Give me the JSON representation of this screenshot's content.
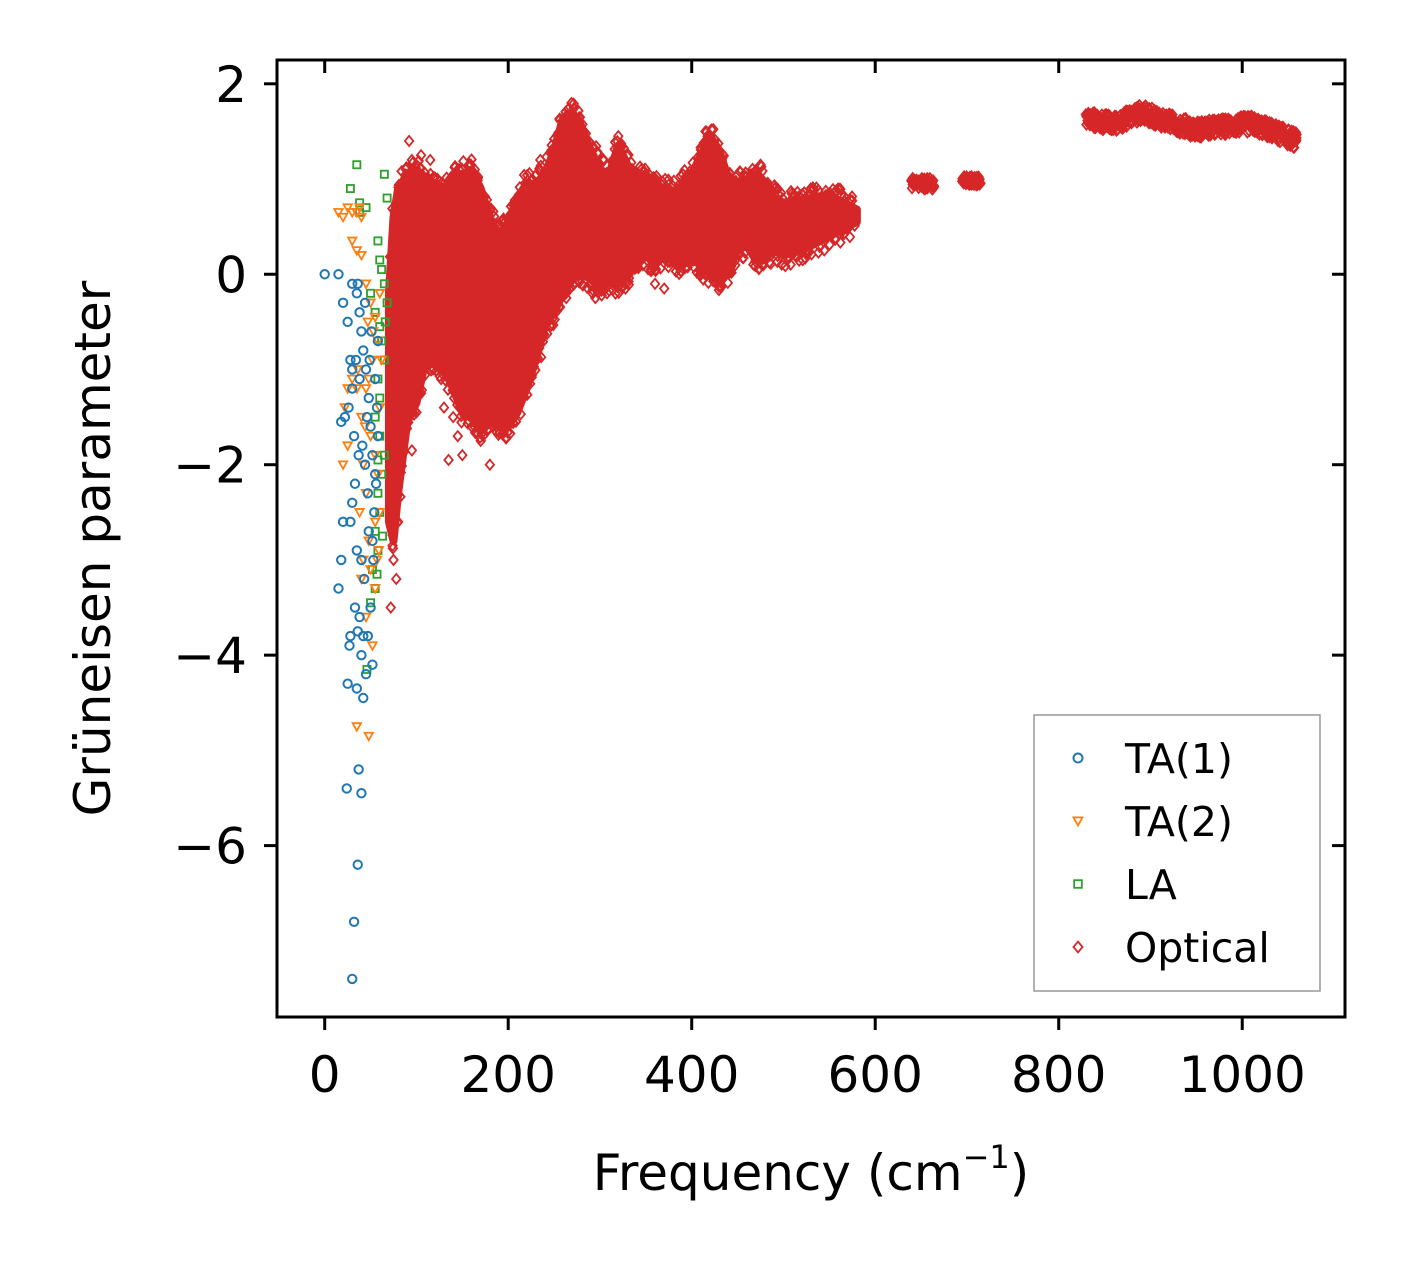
{
  "chart_data": {
    "type": "scatter",
    "title": "",
    "xlabel": "Frequency (cm",
    "xlabel_sup": "−1",
    "xlabel_close": ")",
    "ylabel": "Grüneisen parameter",
    "xlim": [
      -52,
      1112
    ],
    "ylim": [
      -7.8,
      2.25
    ],
    "xticks": [
      0,
      200,
      400,
      600,
      800,
      1000
    ],
    "xtick_labels": [
      "0",
      "200",
      "400",
      "600",
      "800",
      "1000"
    ],
    "yticks": [
      2,
      0,
      -2,
      -4,
      -6
    ],
    "ytick_labels": [
      "2",
      "0",
      "−2",
      "−4",
      "−6"
    ],
    "legend_position": "lower-right",
    "series": [
      {
        "name": "TA(1)",
        "marker": "circle",
        "color": "#1f77b4",
        "points": [
          [
            0,
            0
          ],
          [
            15,
            0
          ],
          [
            20,
            -0.3
          ],
          [
            25,
            -0.5
          ],
          [
            28,
            -0.9
          ],
          [
            30,
            -1.2
          ],
          [
            22,
            -1.5
          ],
          [
            18,
            -1.55
          ],
          [
            26,
            -1.4
          ],
          [
            32,
            -1.7
          ],
          [
            35,
            -0.2
          ],
          [
            38,
            -0.4
          ],
          [
            40,
            -0.6
          ],
          [
            42,
            -0.8
          ],
          [
            45,
            -1.0
          ],
          [
            48,
            -1.3
          ],
          [
            50,
            -1.6
          ],
          [
            52,
            -1.9
          ],
          [
            55,
            -2.1
          ],
          [
            47,
            -2.3
          ],
          [
            44,
            -2.0
          ],
          [
            41,
            -1.8
          ],
          [
            37,
            -1.9
          ],
          [
            33,
            -2.2
          ],
          [
            30,
            -2.4
          ],
          [
            28,
            -2.6
          ],
          [
            20,
            -2.6
          ],
          [
            18,
            -3.0
          ],
          [
            15,
            -3.3
          ],
          [
            35,
            -2.9
          ],
          [
            40,
            -3.0
          ],
          [
            43,
            -3.2
          ],
          [
            38,
            -3.6
          ],
          [
            33,
            -3.5
          ],
          [
            28,
            -3.8
          ],
          [
            27,
            -3.9
          ],
          [
            36,
            -3.75
          ],
          [
            42,
            -3.8
          ],
          [
            47,
            -3.8
          ],
          [
            52,
            -4.1
          ],
          [
            45,
            -4.2
          ],
          [
            40,
            -4.0
          ],
          [
            25,
            -4.3
          ],
          [
            35,
            -4.35
          ],
          [
            42,
            -4.45
          ],
          [
            37,
            -5.2
          ],
          [
            24,
            -5.4
          ],
          [
            40,
            -5.45
          ],
          [
            36,
            -6.2
          ],
          [
            32,
            -6.8
          ],
          [
            30,
            -7.4
          ],
          [
            55,
            -1.1
          ],
          [
            58,
            -0.7
          ],
          [
            57,
            -1.4
          ],
          [
            54,
            -2.5
          ],
          [
            56,
            -2.2
          ],
          [
            50,
            -3.5
          ],
          [
            53,
            -3.0
          ],
          [
            46,
            -1.5
          ],
          [
            49,
            -0.9
          ],
          [
            38,
            -1.1
          ],
          [
            34,
            -0.9
          ],
          [
            30,
            -0.1
          ],
          [
            36,
            -0.1
          ],
          [
            44,
            -0.3
          ],
          [
            51,
            -0.6
          ],
          [
            58,
            -1.7
          ],
          [
            52,
            -2.8
          ],
          [
            48,
            -2.7
          ],
          [
            30,
            -1.0
          ]
        ]
      },
      {
        "name": "TA(2)",
        "marker": "triangle-down",
        "color": "#ff7f0e",
        "points": [
          [
            15,
            0.65
          ],
          [
            20,
            0.6
          ],
          [
            25,
            0.7
          ],
          [
            30,
            0.65
          ],
          [
            35,
            0.65
          ],
          [
            38,
            0.7
          ],
          [
            40,
            0.6
          ],
          [
            30,
            0.35
          ],
          [
            35,
            0.25
          ],
          [
            40,
            0.2
          ],
          [
            45,
            -0.1
          ],
          [
            50,
            -0.3
          ],
          [
            55,
            -0.45
          ],
          [
            60,
            -0.2
          ],
          [
            58,
            -0.7
          ],
          [
            52,
            -0.9
          ],
          [
            48,
            -1.1
          ],
          [
            45,
            -1.2
          ],
          [
            35,
            -1.2
          ],
          [
            30,
            -1.1
          ],
          [
            25,
            -1.2
          ],
          [
            22,
            -1.4
          ],
          [
            40,
            -1.5
          ],
          [
            50,
            -1.7
          ],
          [
            55,
            -1.9
          ],
          [
            58,
            -2.1
          ],
          [
            20,
            -2.0
          ],
          [
            25,
            -1.8
          ],
          [
            45,
            -2.3
          ],
          [
            55,
            -2.6
          ],
          [
            60,
            -2.5
          ],
          [
            48,
            -2.8
          ],
          [
            42,
            -3.0
          ],
          [
            40,
            -3.2
          ],
          [
            50,
            -3.1
          ],
          [
            55,
            -3.3
          ],
          [
            45,
            -3.6
          ],
          [
            52,
            -3.9
          ],
          [
            35,
            -4.75
          ],
          [
            48,
            -4.85
          ],
          [
            60,
            -1.4
          ],
          [
            62,
            -0.9
          ],
          [
            38,
            -2.5
          ],
          [
            42,
            -2.0
          ],
          [
            57,
            -3.0
          ],
          [
            53,
            -0.6
          ],
          [
            47,
            -0.5
          ],
          [
            44,
            -1.6
          ],
          [
            36,
            -1.0
          ],
          [
            59,
            -2.9
          ]
        ]
      },
      {
        "name": "LA",
        "marker": "square",
        "color": "#2ca02c",
        "points": [
          [
            35,
            1.15
          ],
          [
            28,
            0.9
          ],
          [
            38,
            0.75
          ],
          [
            45,
            0.7
          ],
          [
            38,
            0.65
          ],
          [
            65,
            1.05
          ],
          [
            68,
            0.8
          ],
          [
            58,
            0.35
          ],
          [
            60,
            0.15
          ],
          [
            62,
            0.05
          ],
          [
            65,
            -0.1
          ],
          [
            68,
            -0.3
          ],
          [
            60,
            -0.55
          ],
          [
            62,
            -0.7
          ],
          [
            65,
            -0.9
          ],
          [
            58,
            -1.1
          ],
          [
            60,
            -1.3
          ],
          [
            55,
            -1.5
          ],
          [
            60,
            -1.7
          ],
          [
            65,
            -1.9
          ],
          [
            62,
            -2.1
          ],
          [
            58,
            -2.3
          ],
          [
            60,
            -2.5
          ],
          [
            55,
            -2.7
          ],
          [
            58,
            -2.9
          ],
          [
            52,
            -3.1
          ],
          [
            55,
            -3.3
          ],
          [
            50,
            -3.45
          ],
          [
            46,
            -4.15
          ],
          [
            55,
            -0.4
          ],
          [
            50,
            -0.2
          ],
          [
            58,
            -1.95
          ],
          [
            63,
            -2.75
          ],
          [
            57,
            -3.15
          ],
          [
            66,
            -0.5
          ]
        ]
      },
      {
        "name": "Optical",
        "marker": "diamond",
        "color": "#d62728",
        "density": "dense-band",
        "envelope_upper": [
          [
            70,
            -0.2
          ],
          [
            75,
            0.6
          ],
          [
            80,
            0.9
          ],
          [
            90,
            1.05
          ],
          [
            100,
            1.1
          ],
          [
            110,
            1.0
          ],
          [
            120,
            0.95
          ],
          [
            130,
            0.9
          ],
          [
            140,
            1.05
          ],
          [
            150,
            1.05
          ],
          [
            160,
            1.1
          ],
          [
            170,
            0.9
          ],
          [
            180,
            0.6
          ],
          [
            190,
            0.4
          ],
          [
            200,
            0.55
          ],
          [
            210,
            0.8
          ],
          [
            220,
            0.95
          ],
          [
            230,
            0.95
          ],
          [
            240,
            1.05
          ],
          [
            250,
            1.3
          ],
          [
            260,
            1.65
          ],
          [
            270,
            1.7
          ],
          [
            280,
            1.55
          ],
          [
            290,
            1.3
          ],
          [
            300,
            1.1
          ],
          [
            310,
            1.05
          ],
          [
            320,
            1.35
          ],
          [
            330,
            1.15
          ],
          [
            340,
            1.0
          ],
          [
            350,
            1.05
          ],
          [
            360,
            0.95
          ],
          [
            370,
            0.9
          ],
          [
            380,
            0.85
          ],
          [
            390,
            0.95
          ],
          [
            400,
            1.05
          ],
          [
            410,
            1.25
          ],
          [
            420,
            1.45
          ],
          [
            430,
            1.3
          ],
          [
            440,
            1.0
          ],
          [
            450,
            0.95
          ],
          [
            460,
            1.0
          ],
          [
            470,
            1.05
          ],
          [
            480,
            0.95
          ],
          [
            490,
            0.8
          ],
          [
            500,
            0.75
          ],
          [
            520,
            0.78
          ],
          [
            540,
            0.82
          ],
          [
            560,
            0.78
          ],
          [
            580,
            0.68
          ]
        ],
        "envelope_lower": [
          [
            580,
            0.55
          ],
          [
            560,
            0.45
          ],
          [
            540,
            0.35
          ],
          [
            520,
            0.25
          ],
          [
            500,
            0.2
          ],
          [
            490,
            0.25
          ],
          [
            480,
            0.2
          ],
          [
            470,
            0.15
          ],
          [
            460,
            0.3
          ],
          [
            450,
            0.25
          ],
          [
            440,
            0.05
          ],
          [
            430,
            -0.1
          ],
          [
            420,
            0.0
          ],
          [
            410,
            0.1
          ],
          [
            400,
            0.15
          ],
          [
            390,
            0.1
          ],
          [
            380,
            0.15
          ],
          [
            370,
            0.2
          ],
          [
            360,
            0.1
          ],
          [
            350,
            0.2
          ],
          [
            340,
            0.1
          ],
          [
            330,
            0.0
          ],
          [
            320,
            -0.1
          ],
          [
            310,
            -0.05
          ],
          [
            300,
            -0.15
          ],
          [
            290,
            -0.05
          ],
          [
            280,
            0.0
          ],
          [
            270,
            -0.05
          ],
          [
            260,
            -0.2
          ],
          [
            250,
            -0.4
          ],
          [
            240,
            -0.55
          ],
          [
            230,
            -0.9
          ],
          [
            220,
            -1.2
          ],
          [
            210,
            -1.45
          ],
          [
            200,
            -1.6
          ],
          [
            190,
            -1.6
          ],
          [
            180,
            -1.55
          ],
          [
            170,
            -1.65
          ],
          [
            160,
            -1.5
          ],
          [
            150,
            -1.45
          ],
          [
            140,
            -1.2
          ],
          [
            130,
            -1.0
          ],
          [
            120,
            -0.95
          ],
          [
            110,
            -0.9
          ],
          [
            100,
            -1.35
          ],
          [
            90,
            -1.55
          ],
          [
            80,
            -2.3
          ],
          [
            75,
            -2.8
          ],
          [
            70,
            -2.6
          ]
        ],
        "outliers": [
          [
            92,
            1.4
          ],
          [
            95,
            1.2
          ],
          [
            105,
            1.25
          ],
          [
            115,
            1.2
          ],
          [
            140,
            1.0
          ],
          [
            150,
            1.1
          ],
          [
            160,
            1.05
          ],
          [
            235,
            1.2
          ],
          [
            320,
            1.45
          ],
          [
            345,
            1.1
          ],
          [
            415,
            1.5
          ],
          [
            475,
            1.15
          ],
          [
            295,
            -0.25
          ],
          [
            290,
            -0.1
          ],
          [
            360,
            -0.1
          ],
          [
            370,
            -0.15
          ],
          [
            130,
            -1.4
          ],
          [
            140,
            -1.5
          ],
          [
            145,
            -1.7
          ],
          [
            150,
            -1.9
          ],
          [
            135,
            -1.95
          ],
          [
            180,
            -2.0
          ],
          [
            170,
            -1.75
          ],
          [
            160,
            -1.6
          ],
          [
            95,
            -1.85
          ],
          [
            92,
            -1.4
          ],
          [
            100,
            -1.45
          ],
          [
            85,
            -1.8
          ],
          [
            78,
            -2.05
          ],
          [
            72,
            -3.5
          ],
          [
            78,
            -3.2
          ],
          [
            75,
            -3.0
          ],
          [
            80,
            -2.6
          ]
        ],
        "islands": [
          {
            "x_range": [
              640,
              665
            ],
            "y_center": 0.95,
            "y_spread": 0.06
          },
          {
            "x_range": [
              695,
              715
            ],
            "y_center": 0.98,
            "y_spread": 0.05
          },
          {
            "x_range": [
              830,
              1060
            ],
            "y_path": [
              [
                830,
                1.63
              ],
              [
                860,
                1.58
              ],
              [
                890,
                1.7
              ],
              [
                920,
                1.6
              ],
              [
                950,
                1.52
              ],
              [
                980,
                1.55
              ],
              [
                1010,
                1.58
              ],
              [
                1040,
                1.48
              ],
              [
                1060,
                1.4
              ]
            ],
            "y_spread": 0.09
          }
        ]
      }
    ]
  }
}
